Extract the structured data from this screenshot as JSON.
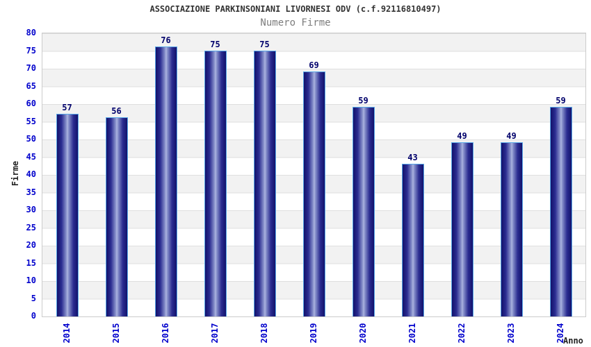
{
  "header": {
    "title": "ASSOCIAZIONE PARKINSONIANI LIVORNESI ODV (c.f.92116810497)",
    "subtitle": "Numero Firme"
  },
  "chart_data": {
    "type": "bar",
    "title": "ASSOCIAZIONE PARKINSONIANI LIVORNESI ODV (c.f.92116810497)",
    "subtitle": "Numero Firme",
    "xlabel": "Anno",
    "ylabel": "Firme",
    "categories": [
      "2014",
      "2015",
      "2016",
      "2017",
      "2018",
      "2019",
      "2020",
      "2021",
      "2022",
      "2023",
      "2024"
    ],
    "values": [
      57,
      56,
      76,
      75,
      75,
      69,
      59,
      43,
      49,
      49,
      59
    ],
    "ylim": [
      0,
      80
    ],
    "ytick_step": 5,
    "legend": "none",
    "grid": "horizontal-bands",
    "colors": {
      "band_gray": "#f2f2f2",
      "band_white": "#ffffff",
      "gridline": "#dfdfdf",
      "plot_border": "#cccccc",
      "tick_label": "#0000cc",
      "value_label": "#00006b",
      "title_text": "#333333",
      "subtitle_text": "#7d7d7d",
      "axis_title_text": "#222222",
      "bar_edge": "#12126b",
      "bar_center": "#adb5e0",
      "bar_border": "#57a7e8"
    }
  }
}
